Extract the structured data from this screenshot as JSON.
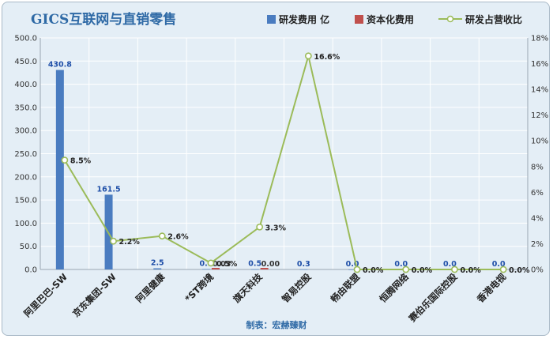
{
  "chart_data": {
    "type": "bar",
    "title": "GICS互联网与直销零售",
    "footer": "制表：宏赫臻财",
    "categories": [
      "阿里巴巴-SW",
      "京东集团-SW",
      "阿里健康",
      "*ST跨境",
      "旗天科技",
      "智易控股",
      "畅由联盟",
      "恒腾网络",
      "赛伯乐国际控股",
      "香港电视"
    ],
    "series": [
      {
        "name": "研发费用 亿",
        "type": "bar",
        "axis": "left",
        "color": "#4a7cc0",
        "values": [
          430.8,
          161.5,
          2.5,
          0.9,
          0.5,
          0.3,
          0.0,
          0.0,
          0.0,
          0.0
        ],
        "labels": [
          "430.8",
          "161.5",
          "2.5",
          "0.9",
          "0.5",
          "0.3",
          "0.0",
          "0.0",
          "0.0",
          "0.0"
        ]
      },
      {
        "name": "资本化费用",
        "type": "bar",
        "axis": "left",
        "color": "#c0504d",
        "values": [
          null,
          null,
          null,
          0.03,
          0.0,
          null,
          null,
          null,
          null,
          null
        ],
        "labels": [
          "",
          "",
          "",
          "0.03",
          "0.00",
          "",
          "",
          "",
          "",
          ""
        ]
      },
      {
        "name": "研发占营收比",
        "type": "line",
        "axis": "right",
        "color": "#9bbb59",
        "values": [
          8.5,
          2.2,
          2.6,
          0.5,
          3.3,
          16.6,
          0.0,
          0.0,
          0.0,
          0.0
        ],
        "labels": [
          "8.5%",
          "2.2%",
          "2.6%",
          "0.5%",
          "3.3%",
          "16.6%",
          "0.0%",
          "0.0%",
          "0.0%",
          "0.0%"
        ]
      }
    ],
    "y_left": {
      "ticks": [
        "0.0",
        "50.0",
        "100.0",
        "150.0",
        "200.0",
        "250.0",
        "300.0",
        "350.0",
        "400.0",
        "450.0",
        "500.0"
      ],
      "range": [
        0,
        500
      ]
    },
    "y_right": {
      "ticks": [
        "0%",
        "2%",
        "4%",
        "6%",
        "8%",
        "10%",
        "12%",
        "14%",
        "16%",
        "18%"
      ],
      "range": [
        0,
        18
      ]
    },
    "grid": true,
    "legend_position": "top-right"
  }
}
